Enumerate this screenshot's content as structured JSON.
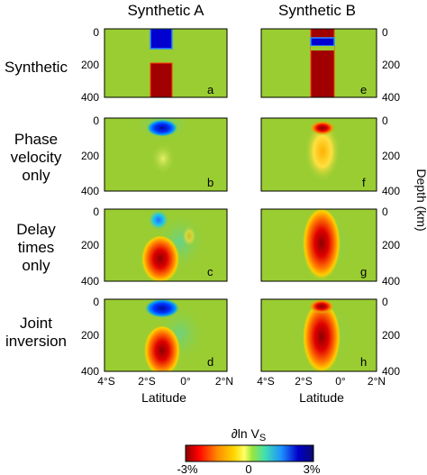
{
  "columns": [
    "Synthetic A",
    "Synthetic B"
  ],
  "rows": [
    {
      "lines": [
        "Synthetic"
      ]
    },
    {
      "lines": [
        "Phase",
        "velocity",
        "only"
      ]
    },
    {
      "lines": [
        "Delay",
        "times",
        "only"
      ]
    },
    {
      "lines": [
        "Joint",
        "inversion"
      ]
    }
  ],
  "panel_letters": [
    [
      "a",
      "e"
    ],
    [
      "b",
      "f"
    ],
    [
      "c",
      "g"
    ],
    [
      "d",
      "h"
    ]
  ],
  "depth_ticks": [
    "0",
    "200",
    "400"
  ],
  "depth_axis_label": "Depth (km)",
  "latitude_ticks": [
    "4°S",
    "2°S",
    "0°",
    "2°N"
  ],
  "latitude_axis_label": "Latitude",
  "colorbar": {
    "title_main": "∂ln V",
    "title_sub": "S",
    "tick_labels": [
      "-3%",
      "0",
      "3%"
    ],
    "range_percent": [
      -3,
      3
    ],
    "colors": [
      "#8b0000",
      "#ff0000",
      "#ff8c00",
      "#ffd700",
      "#ffff66",
      "#9ae63c",
      "#40e0b0",
      "#1e90ff",
      "#0000c8",
      "#0a0a70"
    ]
  },
  "background_color": "#9acd32"
}
